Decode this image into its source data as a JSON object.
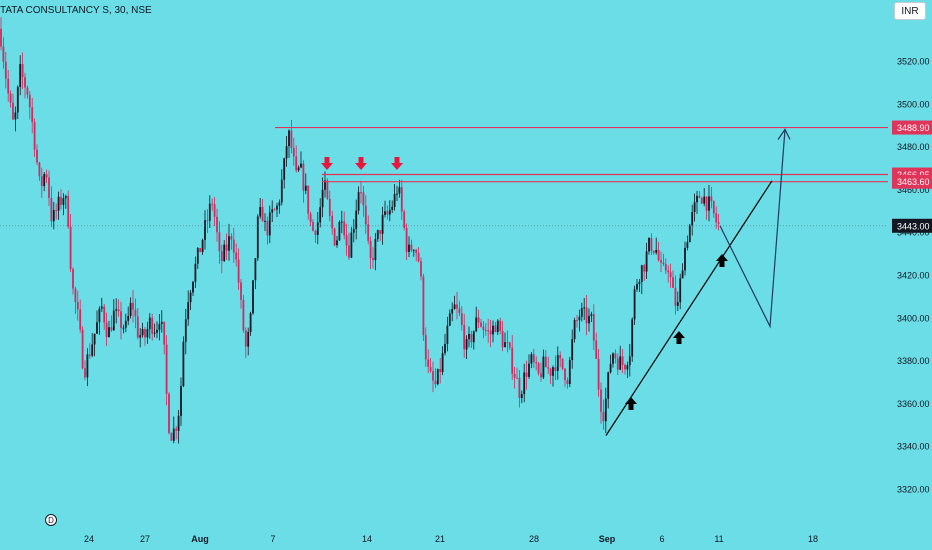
{
  "header": {
    "symbol_title": "TATA CONSULTANCY S, 30, NSE",
    "currency": "INR"
  },
  "colors": {
    "background": "#6bdde6",
    "bull": "#131722",
    "bear": "#d4295e",
    "resistance": "#e0355a",
    "arrow_down": "#e8163c",
    "arrow_up": "#000000",
    "trendline": "#000000",
    "projection": "#1e3a5f"
  },
  "chart_data": {
    "type": "candlestick",
    "title": "TATA CONSULTANCY S, 30, NSE",
    "ylim": [
      3310,
      3540
    ],
    "y_ticks": [
      3320,
      3340,
      3360,
      3380,
      3400,
      3420,
      3440,
      3460,
      3480,
      3500,
      3520
    ],
    "y_tick_labels": [
      "3320.00",
      "3340.00",
      "3360.00",
      "3380.00",
      "3400.00",
      "3420.00",
      "3440.00",
      "3460.00",
      "3480.00",
      "3500.00",
      "3520.00"
    ],
    "x_ticks": [
      "24",
      "27",
      "Aug",
      "7",
      "14",
      "21",
      "28",
      "Sep",
      "6",
      "11",
      "18"
    ],
    "x_tick_bold": [
      "Aug",
      "Sep"
    ],
    "price_levels": [
      {
        "value": 3488.9,
        "label": "3488.90",
        "style": "resistance-line"
      },
      {
        "value": 3466.95,
        "label": "3466.95",
        "style": "resistance-line"
      },
      {
        "value": 3463.6,
        "label": "3463.60",
        "style": "resistance-line"
      },
      {
        "value": 3443.0,
        "label": "3443.00",
        "style": "current-price"
      }
    ],
    "price_path": [
      [
        0,
        3535
      ],
      [
        8,
        3505
      ],
      [
        14,
        3488
      ],
      [
        20,
        3515
      ],
      [
        28,
        3505
      ],
      [
        34,
        3485
      ],
      [
        40,
        3460
      ],
      [
        46,
        3470
      ],
      [
        52,
        3445
      ],
      [
        58,
        3452
      ],
      [
        64,
        3458
      ],
      [
        68,
        3448
      ],
      [
        72,
        3415
      ],
      [
        78,
        3400
      ],
      [
        84,
        3375
      ],
      [
        90,
        3385
      ],
      [
        96,
        3395
      ],
      [
        102,
        3405
      ],
      [
        108,
        3392
      ],
      [
        114,
        3402
      ],
      [
        120,
        3398
      ],
      [
        126,
        3395
      ],
      [
        132,
        3408
      ],
      [
        138,
        3393
      ],
      [
        144,
        3390
      ],
      [
        150,
        3398
      ],
      [
        156,
        3395
      ],
      [
        160,
        3402
      ],
      [
        164,
        3385
      ],
      [
        168,
        3352
      ],
      [
        172,
        3345
      ],
      [
        176,
        3350
      ],
      [
        180,
        3360
      ],
      [
        184,
        3395
      ],
      [
        188,
        3410
      ],
      [
        192,
        3418
      ],
      [
        196,
        3425
      ],
      [
        200,
        3432
      ],
      [
        204,
        3440
      ],
      [
        208,
        3447
      ],
      [
        212,
        3455
      ],
      [
        216,
        3443
      ],
      [
        220,
        3425
      ],
      [
        226,
        3432
      ],
      [
        232,
        3440
      ],
      [
        238,
        3420
      ],
      [
        242,
        3400
      ],
      [
        246,
        3385
      ],
      [
        250,
        3395
      ],
      [
        254,
        3420
      ],
      [
        258,
        3445
      ],
      [
        262,
        3450
      ],
      [
        266,
        3440
      ],
      [
        272,
        3448
      ],
      [
        278,
        3452
      ],
      [
        284,
        3470
      ],
      [
        288,
        3487
      ],
      [
        292,
        3478
      ],
      [
        296,
        3465
      ],
      [
        300,
        3470
      ],
      [
        306,
        3458
      ],
      [
        312,
        3440
      ],
      [
        318,
        3445
      ],
      [
        324,
        3463
      ],
      [
        330,
        3445
      ],
      [
        336,
        3435
      ],
      [
        342,
        3450
      ],
      [
        348,
        3430
      ],
      [
        354,
        3445
      ],
      [
        360,
        3465
      ],
      [
        366,
        3440
      ],
      [
        370,
        3425
      ],
      [
        376,
        3435
      ],
      [
        382,
        3445
      ],
      [
        388,
        3448
      ],
      [
        394,
        3455
      ],
      [
        398,
        3462
      ],
      [
        402,
        3448
      ],
      [
        408,
        3430
      ],
      [
        414,
        3435
      ],
      [
        420,
        3425
      ],
      [
        424,
        3390
      ],
      [
        428,
        3375
      ],
      [
        432,
        3370
      ],
      [
        436,
        3368
      ],
      [
        442,
        3380
      ],
      [
        448,
        3395
      ],
      [
        454,
        3405
      ],
      [
        460,
        3400
      ],
      [
        466,
        3385
      ],
      [
        472,
        3392
      ],
      [
        478,
        3400
      ],
      [
        484,
        3395
      ],
      [
        490,
        3392
      ],
      [
        496,
        3398
      ],
      [
        502,
        3390
      ],
      [
        508,
        3385
      ],
      [
        514,
        3375
      ],
      [
        520,
        3365
      ],
      [
        526,
        3375
      ],
      [
        532,
        3380
      ],
      [
        538,
        3372
      ],
      [
        544,
        3378
      ],
      [
        550,
        3375
      ],
      [
        556,
        3380
      ],
      [
        562,
        3377
      ],
      [
        568,
        3372
      ],
      [
        574,
        3395
      ],
      [
        580,
        3402
      ],
      [
        586,
        3400
      ],
      [
        592,
        3398
      ],
      [
        596,
        3380
      ],
      [
        600,
        3362
      ],
      [
        604,
        3355
      ],
      [
        608,
        3370
      ],
      [
        612,
        3385
      ],
      [
        618,
        3380
      ],
      [
        624,
        3378
      ],
      [
        630,
        3385
      ],
      [
        634,
        3410
      ],
      [
        638,
        3420
      ],
      [
        644,
        3425
      ],
      [
        650,
        3435
      ],
      [
        656,
        3432
      ],
      [
        662,
        3420
      ],
      [
        668,
        3425
      ],
      [
        674,
        3408
      ],
      [
        678,
        3405
      ],
      [
        682,
        3425
      ],
      [
        688,
        3440
      ],
      [
        694,
        3450
      ],
      [
        700,
        3458
      ],
      [
        706,
        3455
      ],
      [
        712,
        3450
      ],
      [
        716,
        3445
      ],
      [
        720,
        3442
      ]
    ],
    "annotations": {
      "resistance_arrows_down": 3,
      "support_arrows_up": 3,
      "trendline": {
        "from": [
          "Sep",
          3345
        ],
        "to": [
          "11-13 Sep",
          3464
        ]
      },
      "projection": {
        "start": 3443,
        "dip": 3396,
        "target": 3488
      }
    }
  }
}
